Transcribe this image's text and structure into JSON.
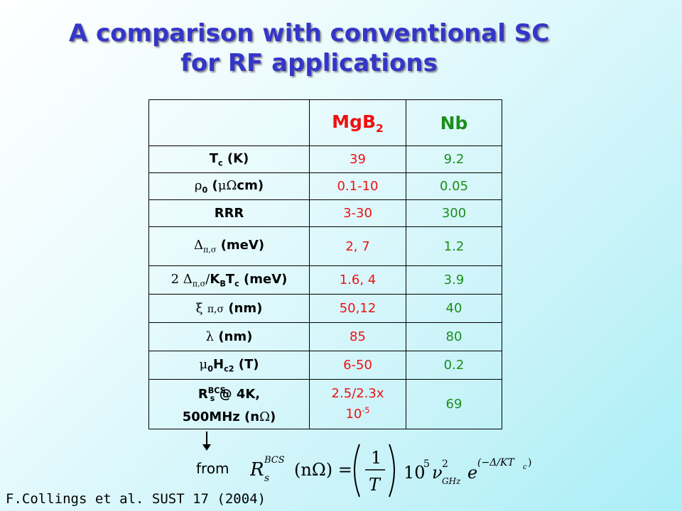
{
  "title": {
    "line1": "A comparison with conventional SC",
    "line2": "for RF applications"
  },
  "table": {
    "headers": {
      "col1": "",
      "col2_base": "MgB",
      "col2_sub": "2",
      "col3": "Nb"
    },
    "rows": [
      {
        "label": "T_c (K)",
        "mgb2": "39",
        "nb": "9.2"
      },
      {
        "label": "ρ0 (μΩcm)",
        "mgb2": "0.1-10",
        "nb": "0.05"
      },
      {
        "label": "RRR",
        "mgb2": "3-30",
        "nb": "300"
      },
      {
        "label": "Δπ,σ (meV)",
        "mgb2": "2, 7",
        "nb": "1.2"
      },
      {
        "label": "2 Δπ,σ/K_B T_c (meV)",
        "mgb2": "1.6, 4",
        "nb": "3.9"
      },
      {
        "label": "ξ π,σ (nm)",
        "mgb2": "50,12",
        "nb": "40"
      },
      {
        "label": "λ (nm)",
        "mgb2": "85",
        "nb": "80"
      },
      {
        "label": "μ0H_c2 (T)",
        "mgb2": "6-50",
        "nb": "0.2"
      },
      {
        "label": "R^BCS_s @ 4K, 500MHz (nΩ)",
        "mgb2": "2.5/2.3x 10^-5",
        "nb": "69"
      }
    ]
  },
  "footer": {
    "from": "from",
    "citation": "F.Collings et al. SUST 17 (2004)"
  },
  "formula": {
    "lhs_R": "R",
    "lhs_sub": "s",
    "lhs_sup": "BCS",
    "lhs_unit": "(nΩ) =",
    "frac_num": "1",
    "frac_den": "T",
    "ten": "10",
    "ten_exp": "5",
    "nu": "ν",
    "nu_sup": "2",
    "nu_sub": "GHz",
    "e": "e",
    "e_exp": "(−Δ/KT",
    "e_exp_sub": "c",
    "e_exp_close": ")"
  },
  "colors": {
    "title": "#3436c8",
    "mgb2": "#ee1111",
    "nb": "#1a8e1a"
  }
}
